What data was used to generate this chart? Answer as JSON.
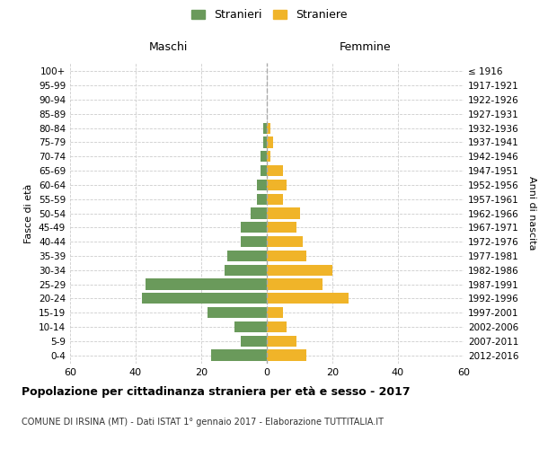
{
  "age_groups": [
    "0-4",
    "5-9",
    "10-14",
    "15-19",
    "20-24",
    "25-29",
    "30-34",
    "35-39",
    "40-44",
    "45-49",
    "50-54",
    "55-59",
    "60-64",
    "65-69",
    "70-74",
    "75-79",
    "80-84",
    "85-89",
    "90-94",
    "95-99",
    "100+"
  ],
  "birth_years": [
    "2012-2016",
    "2007-2011",
    "2002-2006",
    "1997-2001",
    "1992-1996",
    "1987-1991",
    "1982-1986",
    "1977-1981",
    "1972-1976",
    "1967-1971",
    "1962-1966",
    "1957-1961",
    "1952-1956",
    "1947-1951",
    "1942-1946",
    "1937-1941",
    "1932-1936",
    "1927-1931",
    "1922-1926",
    "1917-1921",
    "≤ 1916"
  ],
  "maschi": [
    17,
    8,
    10,
    18,
    38,
    37,
    13,
    12,
    8,
    8,
    5,
    3,
    3,
    2,
    2,
    1,
    1,
    0,
    0,
    0,
    0
  ],
  "femmine": [
    12,
    9,
    6,
    5,
    25,
    17,
    20,
    12,
    11,
    9,
    10,
    5,
    6,
    5,
    1,
    2,
    1,
    0,
    0,
    0,
    0
  ],
  "color_maschi": "#6a9a5b",
  "color_femmine": "#f0b429",
  "title": "Popolazione per cittadinanza straniera per età e sesso - 2017",
  "subtitle": "COMUNE DI IRSINA (MT) - Dati ISTAT 1° gennaio 2017 - Elaborazione TUTTITALIA.IT",
  "xlabel_left": "Maschi",
  "xlabel_right": "Femmine",
  "ylabel_left": "Fasce di età",
  "ylabel_right": "Anni di nascita",
  "legend_maschi": "Stranieri",
  "legend_femmine": "Straniere",
  "xlim": 60,
  "background_color": "#ffffff",
  "grid_color": "#cccccc"
}
